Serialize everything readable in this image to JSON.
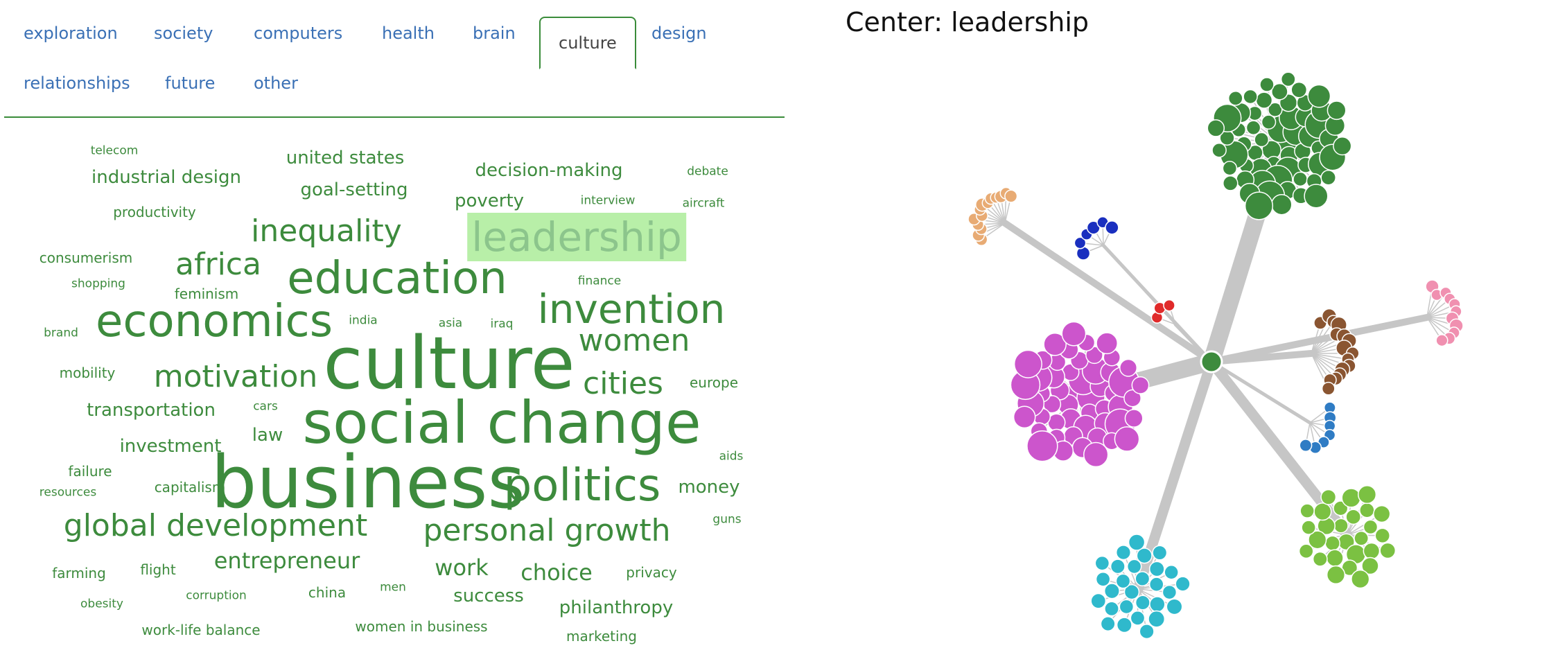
{
  "tabs": [
    {
      "label": "exploration",
      "active": false
    },
    {
      "label": "society",
      "active": false
    },
    {
      "label": "computers",
      "active": false
    },
    {
      "label": "health",
      "active": false
    },
    {
      "label": "brain",
      "active": false
    },
    {
      "label": "culture",
      "active": true
    },
    {
      "label": "design",
      "active": false
    },
    {
      "label": "relationships",
      "active": false
    },
    {
      "label": "future",
      "active": false
    },
    {
      "label": "other",
      "active": false
    }
  ],
  "word_cloud": {
    "highlighted": "leadership",
    "words": [
      {
        "text": "telecom",
        "size": 1
      },
      {
        "text": "united states",
        "size": 3
      },
      {
        "text": "decision-making",
        "size": 3
      },
      {
        "text": "debate",
        "size": 1
      },
      {
        "text": "industrial design",
        "size": 3
      },
      {
        "text": "goal-setting",
        "size": 3
      },
      {
        "text": "poverty",
        "size": 3
      },
      {
        "text": "interview",
        "size": 1
      },
      {
        "text": "aircraft",
        "size": 1
      },
      {
        "text": "productivity",
        "size": 2
      },
      {
        "text": "inequality",
        "size": 5
      },
      {
        "text": "leadership",
        "size": 6
      },
      {
        "text": "consumerism",
        "size": 2
      },
      {
        "text": "africa",
        "size": 5
      },
      {
        "text": "education",
        "size": 7
      },
      {
        "text": "shopping",
        "size": 1
      },
      {
        "text": "feminism",
        "size": 2
      },
      {
        "text": "finance",
        "size": 1
      },
      {
        "text": "invention",
        "size": 6
      },
      {
        "text": "economics",
        "size": 7
      },
      {
        "text": "brand",
        "size": 1
      },
      {
        "text": "india",
        "size": 1
      },
      {
        "text": "asia",
        "size": 1
      },
      {
        "text": "iraq",
        "size": 1
      },
      {
        "text": "women",
        "size": 5
      },
      {
        "text": "culture",
        "size": 9
      },
      {
        "text": "mobility",
        "size": 2
      },
      {
        "text": "motivation",
        "size": 5
      },
      {
        "text": "cities",
        "size": 5
      },
      {
        "text": "europe",
        "size": 2
      },
      {
        "text": "transportation",
        "size": 3
      },
      {
        "text": "cars",
        "size": 1
      },
      {
        "text": "social change",
        "size": 8
      },
      {
        "text": "law",
        "size": 3
      },
      {
        "text": "investment",
        "size": 3
      },
      {
        "text": "aids",
        "size": 1
      },
      {
        "text": "failure",
        "size": 2
      },
      {
        "text": "capitalism",
        "size": 2
      },
      {
        "text": "resources",
        "size": 1
      },
      {
        "text": "business",
        "size": 9
      },
      {
        "text": "politics",
        "size": 7
      },
      {
        "text": "money",
        "size": 3
      },
      {
        "text": "guns",
        "size": 1
      },
      {
        "text": "global development",
        "size": 5
      },
      {
        "text": "personal growth",
        "size": 5
      },
      {
        "text": "entrepreneur",
        "size": 4
      },
      {
        "text": "farming",
        "size": 2
      },
      {
        "text": "flight",
        "size": 2
      },
      {
        "text": "work",
        "size": 4
      },
      {
        "text": "choice",
        "size": 4
      },
      {
        "text": "privacy",
        "size": 2
      },
      {
        "text": "corruption",
        "size": 1
      },
      {
        "text": "china",
        "size": 2
      },
      {
        "text": "men",
        "size": 1
      },
      {
        "text": "success",
        "size": 3
      },
      {
        "text": "obesity",
        "size": 1
      },
      {
        "text": "philanthropy",
        "size": 3
      },
      {
        "text": "work-life balance",
        "size": 2
      },
      {
        "text": "women in business",
        "size": 2
      },
      {
        "text": "marketing",
        "size": 2
      }
    ]
  },
  "graph": {
    "title": "Center: leadership",
    "center_color": "#3d8b3d",
    "edge_color": "#c6c6c6",
    "clusters": [
      {
        "color": "#3d8b3d",
        "count": 62,
        "link_weight": 5
      },
      {
        "color": "#e8ab74",
        "count": 14,
        "link_weight": 2
      },
      {
        "color": "#1a2fbf",
        "count": 6,
        "link_weight": 1
      },
      {
        "color": "#e02a2a",
        "count": 3,
        "link_weight": 1
      },
      {
        "color": "#cc55cc",
        "count": 52,
        "link_weight": 5
      },
      {
        "color": "#8a5531",
        "count": 16,
        "link_weight": 2
      },
      {
        "color": "#f090b0",
        "count": 11,
        "link_weight": 2
      },
      {
        "color": "#2f7cc4",
        "count": 7,
        "link_weight": 1
      },
      {
        "color": "#7bc142",
        "count": 28,
        "link_weight": 3
      },
      {
        "color": "#2fb9cc",
        "count": 28,
        "link_weight": 3
      }
    ]
  }
}
